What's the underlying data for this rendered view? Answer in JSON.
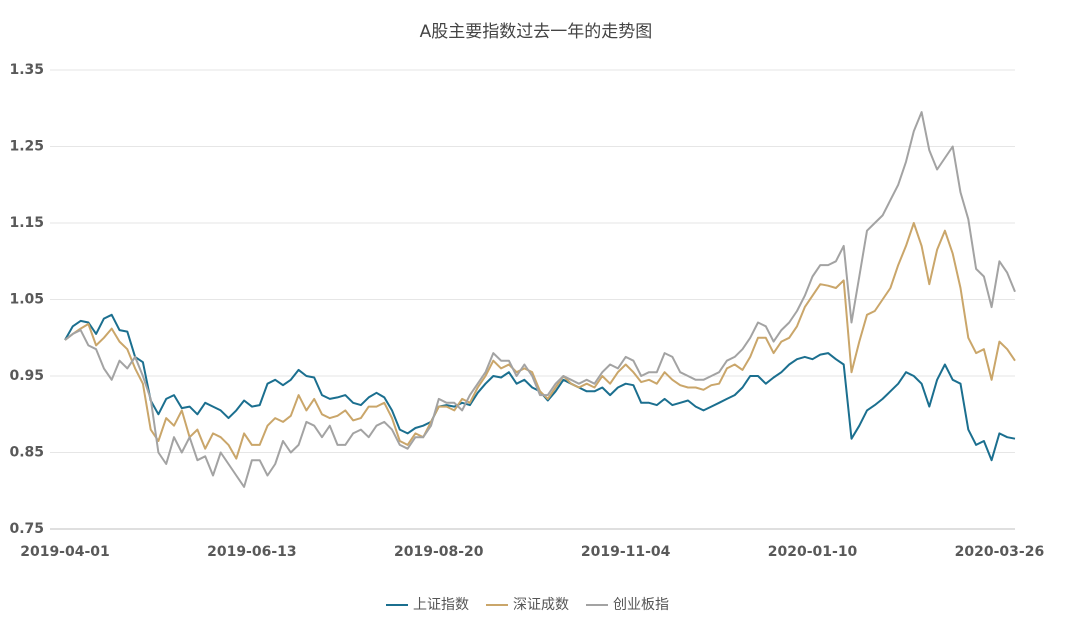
{
  "chart_data": {
    "type": "line",
    "title": "A股主要指数过去一年的走势图",
    "categories": [
      "2019-04-01",
      null,
      null,
      null,
      null,
      null,
      null,
      null,
      null,
      null,
      null,
      null,
      null,
      null,
      null,
      null,
      null,
      null,
      null,
      null,
      null,
      null,
      null,
      null,
      "2019-06-13",
      null,
      null,
      null,
      null,
      null,
      null,
      null,
      null,
      null,
      null,
      null,
      null,
      null,
      null,
      null,
      null,
      null,
      null,
      null,
      null,
      null,
      null,
      null,
      "2019-08-20",
      null,
      null,
      null,
      null,
      null,
      null,
      null,
      null,
      null,
      null,
      null,
      null,
      null,
      null,
      null,
      null,
      null,
      null,
      null,
      null,
      null,
      null,
      null,
      "2019-11-04",
      null,
      null,
      null,
      null,
      null,
      null,
      null,
      null,
      null,
      null,
      null,
      null,
      null,
      null,
      null,
      null,
      null,
      null,
      null,
      null,
      null,
      null,
      null,
      "2020-01-10",
      null,
      null,
      null,
      null,
      null,
      null,
      null,
      null,
      null,
      null,
      null,
      null,
      null,
      null,
      null,
      null,
      null,
      null,
      null,
      null,
      null,
      null,
      null,
      "2020-03-26",
      null,
      null
    ],
    "series": [
      {
        "name": "上证指数",
        "color": "#1b6f8f",
        "values": [
          0.997,
          1.015,
          1.022,
          1.02,
          1.005,
          1.025,
          1.03,
          1.01,
          1.008,
          0.975,
          0.968,
          0.918,
          0.9,
          0.92,
          0.925,
          0.908,
          0.91,
          0.9,
          0.915,
          0.91,
          0.905,
          0.895,
          0.905,
          0.918,
          0.91,
          0.912,
          0.94,
          0.945,
          0.938,
          0.945,
          0.958,
          0.95,
          0.948,
          0.925,
          0.92,
          0.922,
          0.925,
          0.915,
          0.912,
          0.922,
          0.928,
          0.922,
          0.905,
          0.88,
          0.875,
          0.882,
          0.885,
          0.89,
          0.91,
          0.912,
          0.91,
          0.915,
          0.912,
          0.928,
          0.94,
          0.95,
          0.948,
          0.955,
          0.94,
          0.945,
          0.935,
          0.93,
          0.918,
          0.93,
          0.945,
          0.94,
          0.935,
          0.93,
          0.93,
          0.935,
          0.925,
          0.935,
          0.94,
          0.938,
          0.915,
          0.915,
          0.912,
          0.92,
          0.912,
          0.915,
          0.918,
          0.91,
          0.905,
          0.91,
          0.915,
          0.92,
          0.925,
          0.935,
          0.95,
          0.95,
          0.94,
          0.948,
          0.955,
          0.965,
          0.972,
          0.975,
          0.972,
          0.978,
          0.98,
          0.972,
          0.965,
          0.868,
          0.885,
          0.905,
          0.912,
          0.92,
          0.93,
          0.94,
          0.955,
          0.95,
          0.94,
          0.91,
          0.945,
          0.965,
          0.945,
          0.94,
          0.88,
          0.86,
          0.865,
          0.84,
          0.875,
          0.87,
          0.868
        ]
      },
      {
        "name": "深证成数",
        "color": "#caa66a",
        "values": [
          0.997,
          1.005,
          1.012,
          1.018,
          0.99,
          1.0,
          1.012,
          0.995,
          0.985,
          0.96,
          0.94,
          0.88,
          0.865,
          0.895,
          0.885,
          0.905,
          0.87,
          0.88,
          0.855,
          0.875,
          0.87,
          0.86,
          0.842,
          0.875,
          0.86,
          0.86,
          0.885,
          0.895,
          0.89,
          0.898,
          0.925,
          0.905,
          0.92,
          0.9,
          0.895,
          0.898,
          0.905,
          0.892,
          0.895,
          0.91,
          0.91,
          0.915,
          0.895,
          0.865,
          0.86,
          0.875,
          0.87,
          0.89,
          0.91,
          0.91,
          0.905,
          0.92,
          0.915,
          0.935,
          0.95,
          0.97,
          0.96,
          0.965,
          0.955,
          0.96,
          0.955,
          0.93,
          0.92,
          0.935,
          0.95,
          0.94,
          0.935,
          0.94,
          0.935,
          0.95,
          0.94,
          0.955,
          0.965,
          0.955,
          0.942,
          0.945,
          0.94,
          0.955,
          0.945,
          0.938,
          0.935,
          0.935,
          0.932,
          0.938,
          0.94,
          0.96,
          0.965,
          0.958,
          0.975,
          1.0,
          1.0,
          0.98,
          0.995,
          1.0,
          1.015,
          1.04,
          1.055,
          1.07,
          1.068,
          1.065,
          1.075,
          0.955,
          0.995,
          1.03,
          1.035,
          1.05,
          1.065,
          1.095,
          1.12,
          1.15,
          1.12,
          1.07,
          1.115,
          1.14,
          1.11,
          1.065,
          1.0,
          0.98,
          0.985,
          0.945,
          0.995,
          0.985,
          0.97
        ]
      },
      {
        "name": "创业板指",
        "color": "#a3a3a3",
        "values": [
          0.997,
          1.005,
          1.01,
          0.99,
          0.985,
          0.96,
          0.945,
          0.97,
          0.96,
          0.975,
          0.95,
          0.92,
          0.85,
          0.835,
          0.87,
          0.85,
          0.87,
          0.84,
          0.845,
          0.82,
          0.85,
          0.835,
          0.82,
          0.805,
          0.84,
          0.84,
          0.82,
          0.835,
          0.865,
          0.85,
          0.86,
          0.89,
          0.885,
          0.87,
          0.885,
          0.86,
          0.86,
          0.875,
          0.88,
          0.87,
          0.885,
          0.89,
          0.88,
          0.86,
          0.855,
          0.87,
          0.87,
          0.885,
          0.92,
          0.915,
          0.915,
          0.905,
          0.925,
          0.94,
          0.955,
          0.98,
          0.97,
          0.97,
          0.95,
          0.965,
          0.95,
          0.925,
          0.925,
          0.94,
          0.95,
          0.945,
          0.94,
          0.945,
          0.94,
          0.955,
          0.965,
          0.96,
          0.975,
          0.97,
          0.95,
          0.955,
          0.955,
          0.98,
          0.975,
          0.955,
          0.95,
          0.945,
          0.945,
          0.95,
          0.955,
          0.97,
          0.975,
          0.985,
          1.0,
          1.02,
          1.015,
          0.995,
          1.01,
          1.02,
          1.035,
          1.055,
          1.08,
          1.095,
          1.095,
          1.1,
          1.12,
          1.02,
          1.08,
          1.14,
          1.15,
          1.16,
          1.18,
          1.2,
          1.23,
          1.27,
          1.295,
          1.245,
          1.22,
          1.235,
          1.25,
          1.19,
          1.155,
          1.09,
          1.08,
          1.04,
          1.1,
          1.085,
          1.06
        ]
      }
    ],
    "ylim": [
      0.75,
      1.35
    ],
    "yticks": [
      0.75,
      0.85,
      0.95,
      1.05,
      1.15,
      1.25,
      1.35
    ],
    "grid": true,
    "legend": "bottom"
  }
}
